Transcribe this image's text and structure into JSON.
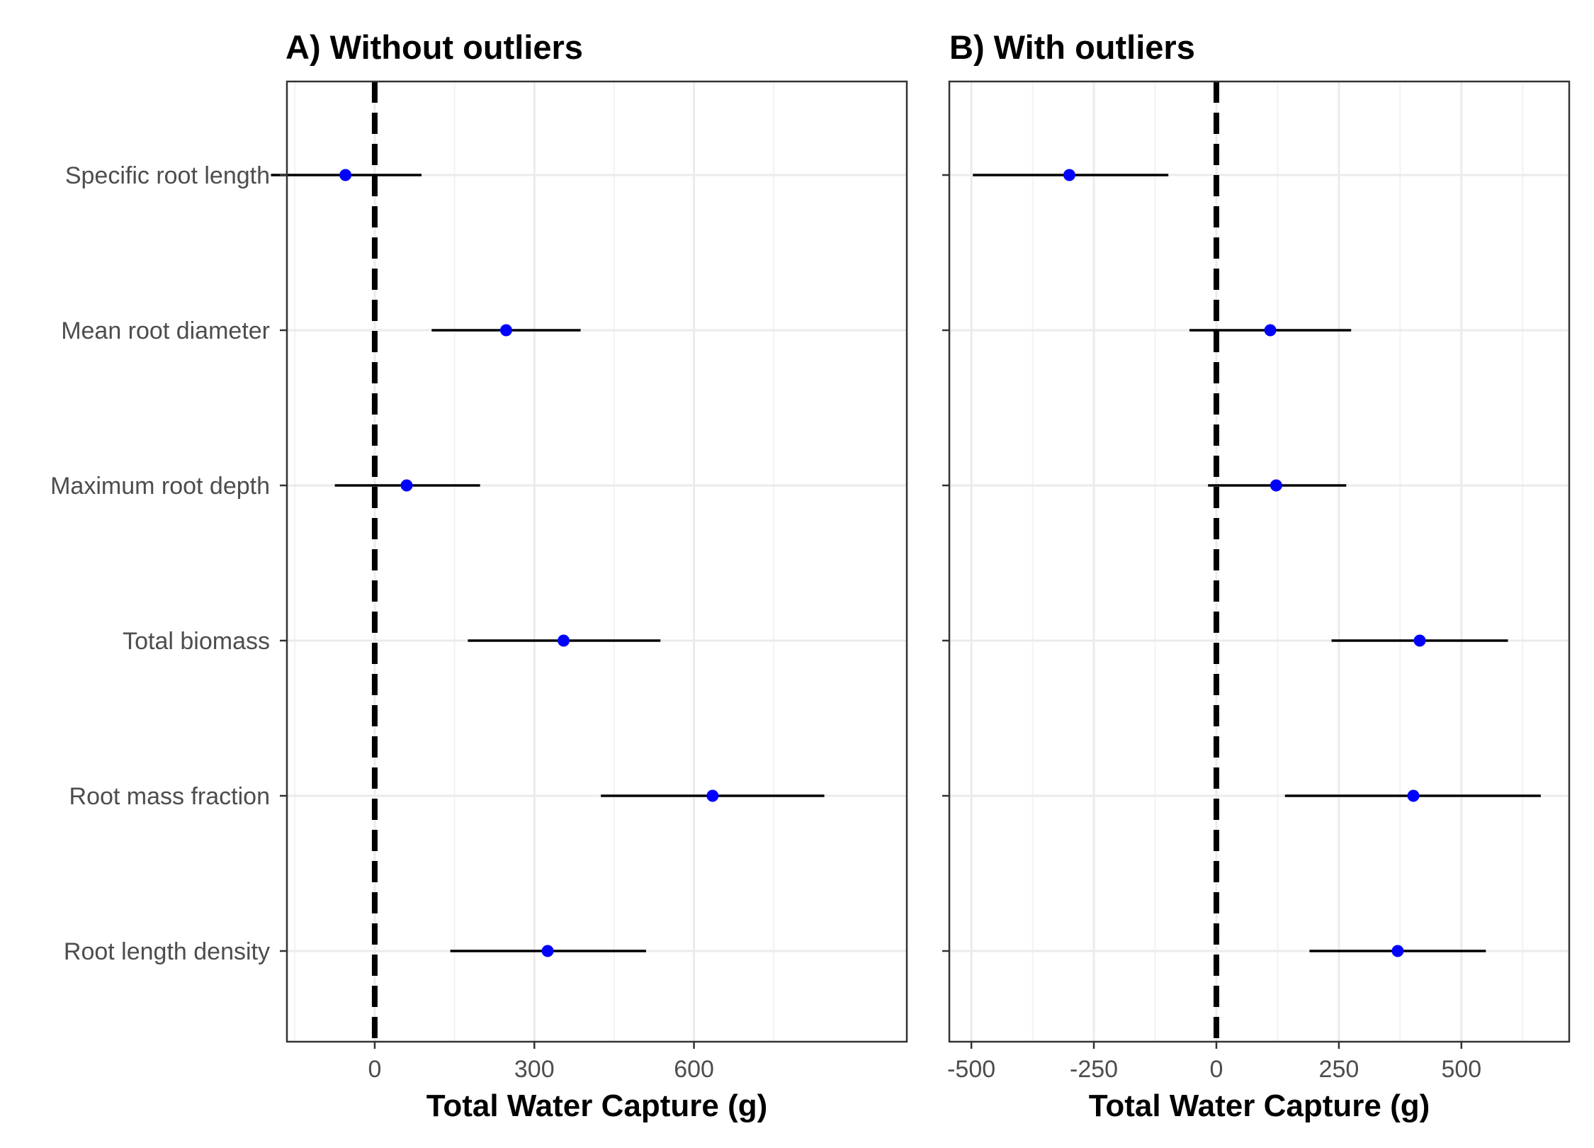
{
  "chart_data": [
    {
      "type": "scatter",
      "title": "A) Without outliers",
      "xlabel": "Total Water Capture (g)",
      "ylabel": "",
      "xlim": [
        -165,
        1000
      ],
      "xticks": [
        0,
        300,
        600
      ],
      "reference_line_x": 0,
      "grid": true,
      "categories": [
        "Specific root length",
        "Mean root diameter",
        "Maximum root depth",
        "Total biomass",
        "Root mass fraction",
        "Root length density"
      ],
      "series": [
        {
          "points": [
            {
              "category": "Specific root length",
              "x": -55,
              "low": -195,
              "high": 88
            },
            {
              "category": "Mean root diameter",
              "x": 247,
              "low": 107,
              "high": 387
            },
            {
              "category": "Maximum root depth",
              "x": 60,
              "low": -75,
              "high": 198
            },
            {
              "category": "Total biomass",
              "x": 355,
              "low": 175,
              "high": 537
            },
            {
              "category": "Root mass fraction",
              "x": 635,
              "low": 425,
              "high": 845
            },
            {
              "category": "Root length density",
              "x": 325,
              "low": 142,
              "high": 510
            }
          ]
        }
      ]
    },
    {
      "type": "scatter",
      "title": "B) With outliers",
      "xlabel": "Total Water Capture (g)",
      "ylabel": "",
      "xlim": [
        -545,
        720
      ],
      "xticks": [
        -500,
        -250,
        0,
        250,
        500
      ],
      "reference_line_x": 0,
      "grid": true,
      "categories": [
        "Specific root length",
        "Mean root diameter",
        "Maximum root depth",
        "Total biomass",
        "Root mass fraction",
        "Root length density"
      ],
      "series": [
        {
          "points": [
            {
              "category": "Specific root length",
              "x": -300,
              "low": -497,
              "high": -98
            },
            {
              "category": "Mean root diameter",
              "x": 110,
              "low": -55,
              "high": 275
            },
            {
              "category": "Maximum root depth",
              "x": 122,
              "low": -17,
              "high": 265
            },
            {
              "category": "Total biomass",
              "x": 415,
              "low": 235,
              "high": 595
            },
            {
              "category": "Root mass fraction",
              "x": 402,
              "low": 140,
              "high": 662
            },
            {
              "category": "Root length density",
              "x": 370,
              "low": 190,
              "high": 550
            }
          ]
        }
      ]
    }
  ],
  "colors": {
    "point": "#0000ff",
    "errorbar": "#000000",
    "grid_major": "#ebebeb",
    "grid_minor": "#f2f2f2",
    "panel_border": "#333333",
    "reference_line": "#000000"
  }
}
